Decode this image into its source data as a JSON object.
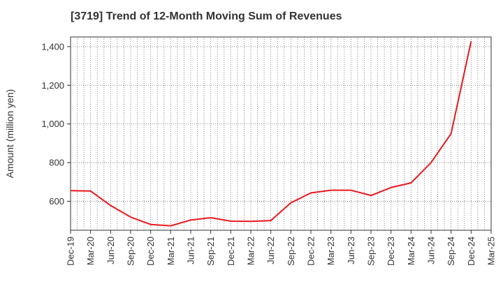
{
  "chart_data": {
    "type": "line",
    "title": "[3719]  Trend of 12-Month Moving Sum of Revenues",
    "xlabel": "",
    "ylabel": "Amount (million yen)",
    "x_tick_labels": [
      "Dec-19",
      "Mar-20",
      "Jun-20",
      "Sep-20",
      "Dec-20",
      "Mar-21",
      "Jun-21",
      "Sep-21",
      "Dec-21",
      "Mar-22",
      "Jun-22",
      "Sep-22",
      "Dec-22",
      "Mar-23",
      "Jun-23",
      "Sep-23",
      "Dec-23",
      "Mar-24",
      "Jun-24",
      "Sep-24",
      "Dec-24",
      "Mar-25"
    ],
    "y_ticks": [
      600,
      800,
      1000,
      1200,
      1400
    ],
    "y_tick_labels": [
      "600",
      "800",
      "1,000",
      "1,200",
      "1,400"
    ],
    "ylim": [
      450,
      1450
    ],
    "grid": true,
    "series": [
      {
        "color": "#e8191f",
        "x": [
          "Dec-19",
          "Mar-20",
          "Jun-20",
          "Sep-20",
          "Dec-20",
          "Mar-21",
          "Jun-21",
          "Sep-21",
          "Dec-21",
          "Mar-22",
          "Jun-22",
          "Sep-22",
          "Dec-22",
          "Mar-23",
          "Jun-23",
          "Sep-23",
          "Dec-23",
          "Mar-24",
          "Jun-24",
          "Sep-24",
          "Dec-24"
        ],
        "values": [
          655,
          653,
          578,
          518,
          480,
          473,
          503,
          515,
          497,
          496,
          500,
          592,
          643,
          657,
          657,
          630,
          671,
          695,
          800,
          950,
          1427
        ]
      }
    ]
  }
}
